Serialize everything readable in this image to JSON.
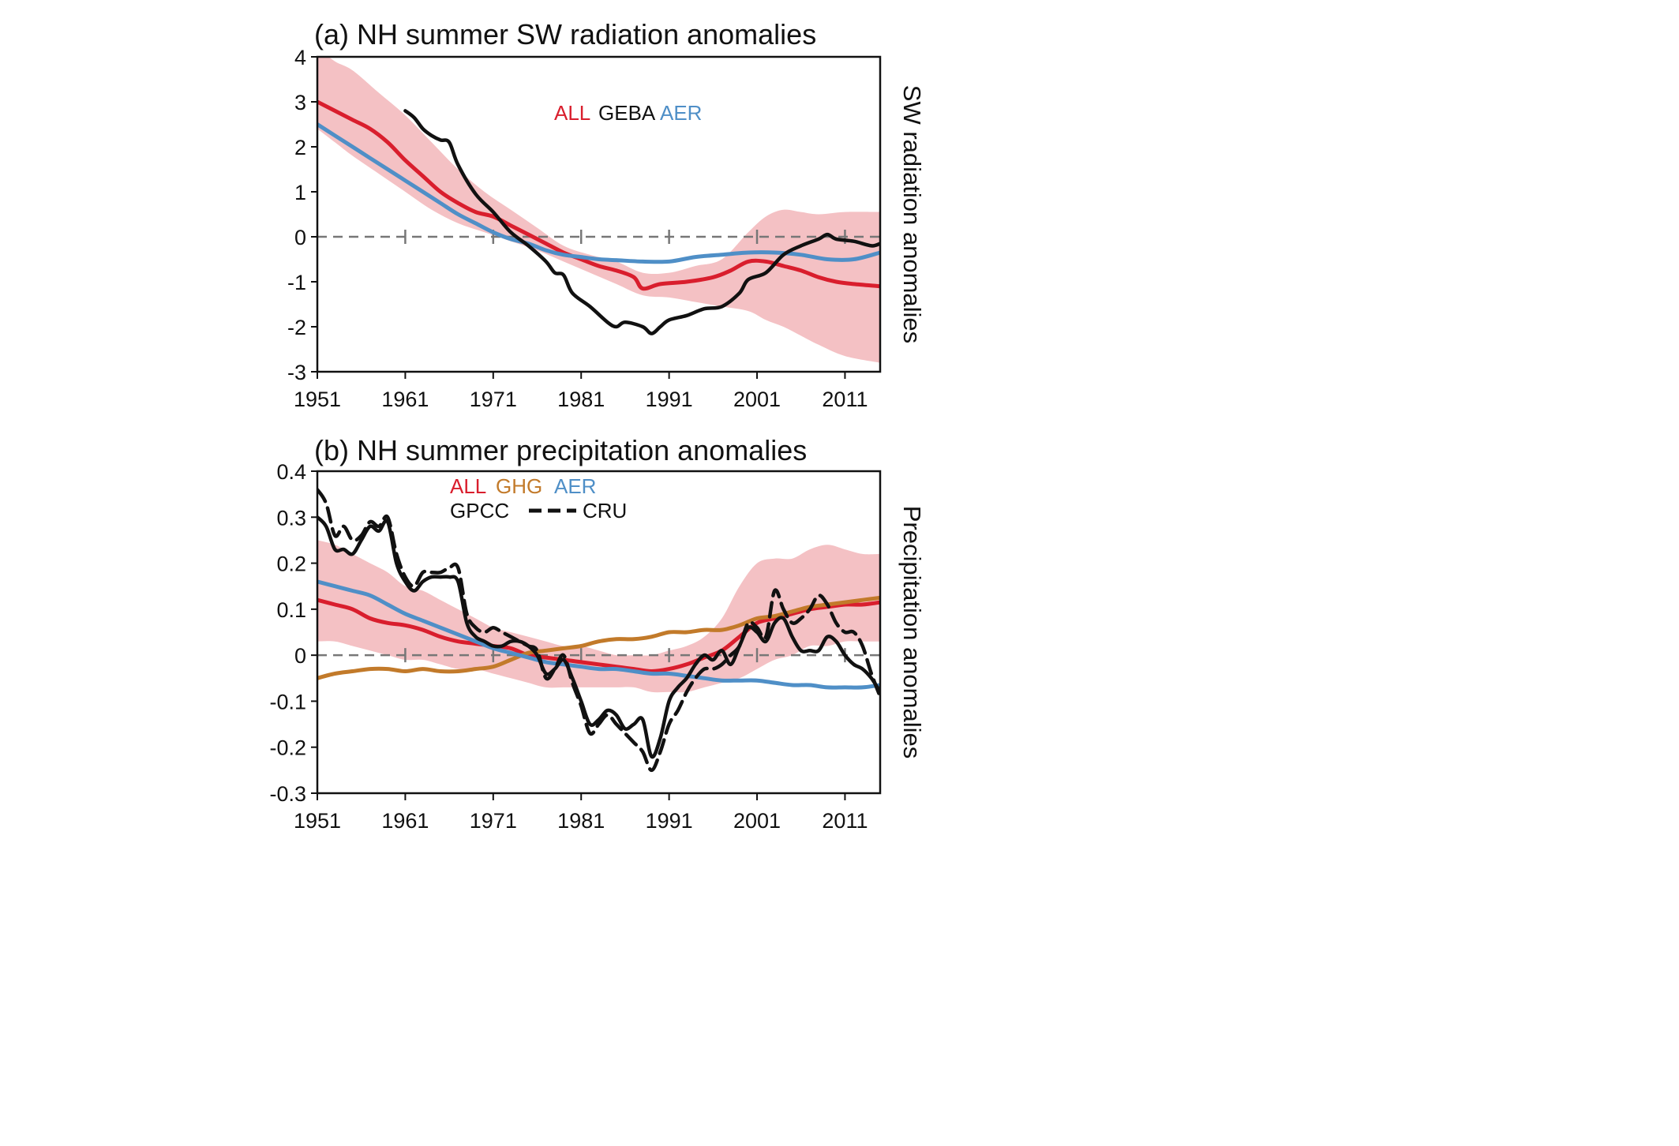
{
  "colors": {
    "ALL": "#d91e2d",
    "GHG": "#c27a2a",
    "AER": "#4f8fc7",
    "obs": "#111111",
    "band": "#f4c1c4",
    "zero": "#777777",
    "frame": "#111111"
  },
  "chart_data": [
    {
      "type": "line",
      "title": "(a) NH summer SW radiation anomalies",
      "ylabel": "SW radiation anomalies",
      "xlim": [
        1951,
        2015
      ],
      "ylim": [
        -3,
        4
      ],
      "xticks": [
        1951,
        1961,
        1971,
        1981,
        1991,
        2001,
        2011
      ],
      "yticks": [
        4,
        3,
        2,
        1,
        0,
        -1,
        -2,
        -3
      ],
      "grid": false,
      "zero_line": "dashed",
      "legend": {
        "placement": "top-center",
        "entries": [
          {
            "label": "ALL",
            "key": "ALL"
          },
          {
            "label": "GEBA",
            "key": "obs"
          },
          {
            "label": "AER",
            "key": "AER"
          }
        ]
      },
      "band": {
        "name": "ALL range",
        "x": [
          1951,
          1953,
          1955,
          1958,
          1961,
          1964,
          1967,
          1970,
          1973,
          1976,
          1979,
          1982,
          1985,
          1988,
          1991,
          1994,
          1997,
          2000,
          2002,
          2004,
          2006,
          2008,
          2011,
          2015
        ],
        "upper": [
          4.2,
          3.9,
          3.7,
          3.2,
          2.7,
          2.1,
          1.5,
          1.0,
          0.6,
          0.2,
          -0.2,
          -0.4,
          -0.55,
          -0.8,
          -0.8,
          -0.65,
          -0.5,
          0.1,
          0.45,
          0.6,
          0.55,
          0.5,
          0.55,
          0.55
        ],
        "lower": [
          2.4,
          2.1,
          1.8,
          1.4,
          1.0,
          0.6,
          0.3,
          0.1,
          -0.1,
          -0.3,
          -0.55,
          -0.8,
          -1.05,
          -1.3,
          -1.35,
          -1.45,
          -1.55,
          -1.65,
          -1.85,
          -2.0,
          -2.2,
          -2.4,
          -2.65,
          -2.8
        ]
      },
      "series": [
        {
          "name": "ALL",
          "color_key": "ALL",
          "style": "solid",
          "x": [
            1951,
            1953,
            1955,
            1957,
            1959,
            1961,
            1963,
            1965,
            1967,
            1969,
            1971,
            1973,
            1975,
            1977,
            1979,
            1981,
            1983,
            1985,
            1987,
            1988,
            1990,
            1993,
            1996,
            1998,
            2000,
            2002,
            2004,
            2006,
            2008,
            2010,
            2012,
            2015
          ],
          "y": [
            3.0,
            2.8,
            2.6,
            2.4,
            2.1,
            1.7,
            1.35,
            1.0,
            0.75,
            0.55,
            0.45,
            0.25,
            0.05,
            -0.15,
            -0.35,
            -0.5,
            -0.65,
            -0.75,
            -0.9,
            -1.15,
            -1.05,
            -1.0,
            -0.9,
            -0.75,
            -0.55,
            -0.55,
            -0.65,
            -0.75,
            -0.9,
            -1.0,
            -1.05,
            -1.1
          ]
        },
        {
          "name": "AER",
          "color_key": "AER",
          "style": "solid",
          "x": [
            1951,
            1953,
            1955,
            1957,
            1959,
            1961,
            1963,
            1965,
            1967,
            1969,
            1971,
            1973,
            1975,
            1977,
            1979,
            1981,
            1983,
            1985,
            1988,
            1991,
            1994,
            1997,
            2000,
            2003,
            2006,
            2009,
            2012,
            2015
          ],
          "y": [
            2.5,
            2.25,
            2.0,
            1.75,
            1.5,
            1.25,
            1.0,
            0.75,
            0.5,
            0.3,
            0.1,
            -0.05,
            -0.15,
            -0.3,
            -0.4,
            -0.45,
            -0.5,
            -0.52,
            -0.55,
            -0.55,
            -0.45,
            -0.4,
            -0.35,
            -0.35,
            -0.4,
            -0.5,
            -0.5,
            -0.35
          ]
        },
        {
          "name": "GEBA",
          "color_key": "obs",
          "style": "solid",
          "x": [
            1961,
            1962,
            1963,
            1964,
            1965,
            1966,
            1967,
            1969,
            1971,
            1973,
            1975,
            1977,
            1978,
            1979,
            1980,
            1982,
            1984,
            1985,
            1986,
            1988,
            1989,
            1990,
            1991,
            1993,
            1995,
            1997,
            1999,
            2000,
            2002,
            2004,
            2006,
            2008,
            2009,
            2010,
            2012,
            2014,
            2015
          ],
          "y": [
            2.8,
            2.65,
            2.4,
            2.25,
            2.15,
            2.1,
            1.6,
            0.95,
            0.55,
            0.1,
            -0.2,
            -0.55,
            -0.8,
            -0.85,
            -1.25,
            -1.55,
            -1.9,
            -2.0,
            -1.9,
            -2.0,
            -2.15,
            -2.0,
            -1.85,
            -1.75,
            -1.6,
            -1.55,
            -1.25,
            -0.95,
            -0.8,
            -0.4,
            -0.2,
            -0.05,
            0.05,
            -0.05,
            -0.1,
            -0.2,
            -0.15
          ]
        }
      ]
    },
    {
      "type": "line",
      "title": "(b) NH summer precipitation anomalies",
      "ylabel": "Precipitation anomalies",
      "xlim": [
        1951,
        2015
      ],
      "ylim": [
        -0.3,
        0.4
      ],
      "xticks": [
        1951,
        1961,
        1971,
        1981,
        1991,
        2001,
        2011
      ],
      "yticks": [
        0.4,
        0.3,
        0.2,
        0.1,
        0,
        -0.1,
        -0.2,
        -0.3
      ],
      "grid": false,
      "zero_line": "dashed",
      "legend": {
        "placement": "top-center",
        "entries": [
          {
            "label": "ALL",
            "key": "ALL"
          },
          {
            "label": "GHG",
            "key": "GHG"
          },
          {
            "label": "AER",
            "key": "AER"
          },
          {
            "label": "GPCC",
            "key": "obs"
          },
          {
            "label": "CRU",
            "key": "obs",
            "dashed": true
          }
        ]
      },
      "band": {
        "name": "ALL range",
        "x": [
          1951,
          1953,
          1955,
          1957,
          1959,
          1961,
          1963,
          1965,
          1967,
          1969,
          1971,
          1973,
          1975,
          1977,
          1979,
          1981,
          1983,
          1985,
          1987,
          1989,
          1991,
          1993,
          1995,
          1997,
          1999,
          2001,
          2003,
          2005,
          2007,
          2009,
          2011,
          2013,
          2015
        ],
        "upper": [
          0.25,
          0.24,
          0.22,
          0.2,
          0.18,
          0.15,
          0.14,
          0.12,
          0.1,
          0.08,
          0.06,
          0.05,
          0.04,
          0.03,
          0.02,
          0.02,
          0.01,
          0.0,
          0.0,
          0.0,
          0.01,
          0.02,
          0.04,
          0.08,
          0.15,
          0.2,
          0.21,
          0.21,
          0.23,
          0.24,
          0.23,
          0.22,
          0.22
        ],
        "lower": [
          0.03,
          0.03,
          0.02,
          0.01,
          0.0,
          -0.01,
          -0.01,
          -0.02,
          -0.03,
          -0.03,
          -0.04,
          -0.05,
          -0.06,
          -0.07,
          -0.07,
          -0.07,
          -0.07,
          -0.07,
          -0.07,
          -0.08,
          -0.08,
          -0.08,
          -0.07,
          -0.06,
          -0.05,
          -0.03,
          -0.01,
          0.0,
          0.02,
          0.02,
          0.03,
          0.03,
          0.03
        ]
      },
      "series": [
        {
          "name": "ALL",
          "color_key": "ALL",
          "style": "solid",
          "x": [
            1951,
            1953,
            1955,
            1957,
            1959,
            1961,
            1963,
            1965,
            1967,
            1969,
            1971,
            1973,
            1975,
            1977,
            1979,
            1981,
            1983,
            1985,
            1987,
            1989,
            1991,
            1993,
            1995,
            1997,
            1999,
            2001,
            2003,
            2005,
            2007,
            2009,
            2011,
            2013,
            2015
          ],
          "y": [
            0.12,
            0.11,
            0.1,
            0.08,
            0.07,
            0.065,
            0.055,
            0.04,
            0.03,
            0.025,
            0.02,
            0.015,
            0.0,
            -0.005,
            -0.01,
            -0.015,
            -0.02,
            -0.025,
            -0.03,
            -0.035,
            -0.03,
            -0.02,
            -0.005,
            0.01,
            0.04,
            0.07,
            0.08,
            0.09,
            0.1,
            0.105,
            0.11,
            0.11,
            0.115
          ]
        },
        {
          "name": "GHG",
          "color_key": "GHG",
          "style": "solid",
          "x": [
            1951,
            1953,
            1955,
            1957,
            1959,
            1961,
            1963,
            1965,
            1967,
            1969,
            1971,
            1973,
            1975,
            1977,
            1979,
            1981,
            1983,
            1985,
            1987,
            1989,
            1991,
            1993,
            1995,
            1997,
            1999,
            2001,
            2003,
            2005,
            2007,
            2009,
            2011,
            2013,
            2015
          ],
          "y": [
            -0.05,
            -0.04,
            -0.035,
            -0.03,
            -0.03,
            -0.035,
            -0.03,
            -0.035,
            -0.035,
            -0.03,
            -0.025,
            -0.01,
            0.005,
            0.01,
            0.015,
            0.02,
            0.03,
            0.035,
            0.035,
            0.04,
            0.05,
            0.05,
            0.055,
            0.055,
            0.065,
            0.08,
            0.085,
            0.095,
            0.105,
            0.11,
            0.115,
            0.12,
            0.125
          ]
        },
        {
          "name": "AER",
          "color_key": "AER",
          "style": "solid",
          "x": [
            1951,
            1953,
            1955,
            1957,
            1959,
            1961,
            1963,
            1965,
            1967,
            1969,
            1971,
            1973,
            1975,
            1977,
            1979,
            1981,
            1983,
            1985,
            1987,
            1989,
            1991,
            1993,
            1995,
            1997,
            1999,
            2001,
            2003,
            2005,
            2007,
            2009,
            2011,
            2013,
            2015
          ],
          "y": [
            0.16,
            0.15,
            0.14,
            0.13,
            0.11,
            0.09,
            0.075,
            0.06,
            0.045,
            0.03,
            0.015,
            0.005,
            -0.005,
            -0.015,
            -0.02,
            -0.025,
            -0.03,
            -0.03,
            -0.035,
            -0.04,
            -0.04,
            -0.045,
            -0.05,
            -0.055,
            -0.055,
            -0.055,
            -0.06,
            -0.065,
            -0.065,
            -0.07,
            -0.07,
            -0.07,
            -0.065
          ]
        },
        {
          "name": "GPCC",
          "color_key": "obs",
          "style": "solid",
          "x": [
            1951,
            1952,
            1953,
            1954,
            1955,
            1956,
            1957,
            1958,
            1959,
            1960,
            1961,
            1962,
            1963,
            1964,
            1965,
            1966,
            1967,
            1968,
            1969,
            1970,
            1971,
            1972,
            1973,
            1974,
            1975,
            1976,
            1977,
            1978,
            1979,
            1980,
            1981,
            1982,
            1983,
            1984,
            1985,
            1986,
            1987,
            1988,
            1989,
            1990,
            1991,
            1992,
            1993,
            1994,
            1995,
            1996,
            1997,
            1998,
            1999,
            2000,
            2001,
            2002,
            2003,
            2004,
            2005,
            2006,
            2007,
            2008,
            2009,
            2010,
            2011,
            2012,
            2013,
            2014,
            2015
          ],
          "y": [
            0.3,
            0.28,
            0.23,
            0.23,
            0.22,
            0.25,
            0.28,
            0.27,
            0.29,
            0.2,
            0.16,
            0.14,
            0.16,
            0.17,
            0.17,
            0.17,
            0.16,
            0.07,
            0.04,
            0.03,
            0.02,
            0.02,
            0.03,
            0.03,
            0.02,
            0.0,
            -0.04,
            -0.03,
            -0.01,
            -0.05,
            -0.1,
            -0.15,
            -0.14,
            -0.12,
            -0.13,
            -0.16,
            -0.15,
            -0.14,
            -0.22,
            -0.18,
            -0.1,
            -0.07,
            -0.05,
            -0.02,
            0.0,
            -0.01,
            0.01,
            -0.02,
            0.02,
            0.06,
            0.05,
            0.03,
            0.07,
            0.08,
            0.04,
            0.01,
            0.01,
            0.01,
            0.04,
            0.03,
            0.0,
            -0.02,
            -0.03,
            -0.05,
            -0.08
          ]
        },
        {
          "name": "CRU",
          "color_key": "obs",
          "style": "dashed",
          "x": [
            1951,
            1952,
            1953,
            1954,
            1955,
            1956,
            1957,
            1958,
            1959,
            1960,
            1961,
            1962,
            1963,
            1964,
            1965,
            1966,
            1967,
            1968,
            1969,
            1970,
            1971,
            1972,
            1973,
            1974,
            1975,
            1976,
            1977,
            1978,
            1979,
            1980,
            1981,
            1982,
            1983,
            1984,
            1985,
            1986,
            1987,
            1988,
            1989,
            1990,
            1991,
            1992,
            1993,
            1994,
            1995,
            1996,
            1997,
            1998,
            1999,
            2000,
            2001,
            2002,
            2003,
            2004,
            2005,
            2006,
            2007,
            2008,
            2009,
            2010,
            2011,
            2012,
            2013,
            2014,
            2015
          ],
          "y": [
            0.36,
            0.33,
            0.26,
            0.28,
            0.25,
            0.26,
            0.29,
            0.28,
            0.3,
            0.22,
            0.17,
            0.15,
            0.18,
            0.18,
            0.18,
            0.19,
            0.19,
            0.09,
            0.06,
            0.05,
            0.06,
            0.05,
            0.04,
            0.03,
            0.02,
            0.01,
            -0.05,
            -0.03,
            0.0,
            -0.06,
            -0.11,
            -0.17,
            -0.15,
            -0.13,
            -0.15,
            -0.17,
            -0.19,
            -0.21,
            -0.25,
            -0.21,
            -0.15,
            -0.12,
            -0.08,
            -0.05,
            -0.03,
            -0.03,
            -0.02,
            0.0,
            0.02,
            0.07,
            0.06,
            0.04,
            0.14,
            0.1,
            0.07,
            0.08,
            0.1,
            0.13,
            0.11,
            0.07,
            0.05,
            0.05,
            0.02,
            -0.04,
            -0.09
          ]
        }
      ]
    }
  ]
}
